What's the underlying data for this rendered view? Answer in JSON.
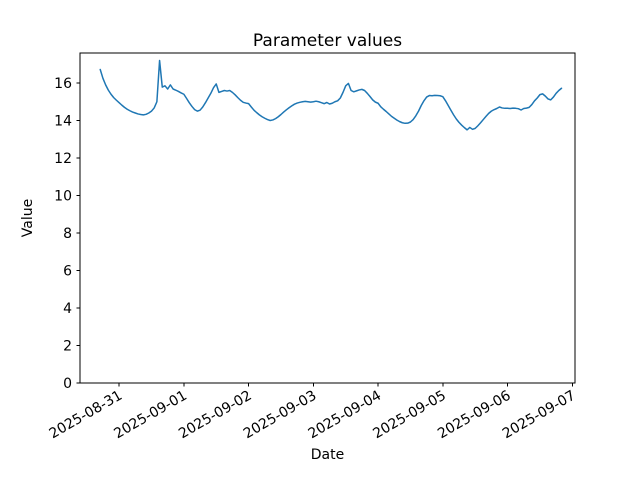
{
  "figure": {
    "title": "Parameter values"
  },
  "axes": {
    "xlabel": "Date",
    "ylabel": "Value"
  },
  "chart_data": {
    "type": "line",
    "title": "Parameter values",
    "xlabel": "Date",
    "ylabel": "Value",
    "grid": false,
    "legend": null,
    "background": "#ffffff",
    "spine_color": "#000000",
    "ylim": [
      0,
      17.6
    ],
    "xlim_hours": [
      9.5,
      193
    ],
    "hours_origin": "2025-08-30 00:00",
    "y_ticks": [
      0,
      2,
      4,
      6,
      8,
      10,
      12,
      14,
      16
    ],
    "x_ticks": [
      {
        "label": "2025-08-31",
        "hours": 24
      },
      {
        "label": "2025-09-01",
        "hours": 48
      },
      {
        "label": "2025-09-02",
        "hours": 72
      },
      {
        "label": "2025-09-03",
        "hours": 96
      },
      {
        "label": "2025-09-04",
        "hours": 120
      },
      {
        "label": "2025-09-05",
        "hours": 144
      },
      {
        "label": "2025-09-06",
        "hours": 168
      },
      {
        "label": "2025-09-07",
        "hours": 192
      }
    ],
    "series": [
      {
        "name": "Parameter values",
        "color": "#1f77b4",
        "line_width": 1.5,
        "start_time": "2025-08-30 17:00",
        "start_hours": 17,
        "step_hours": 1,
        "values": [
          16.72,
          16.25,
          15.9,
          15.62,
          15.4,
          15.22,
          15.08,
          14.95,
          14.82,
          14.7,
          14.6,
          14.52,
          14.45,
          14.4,
          14.35,
          14.32,
          14.3,
          14.33,
          14.4,
          14.5,
          14.67,
          15.0,
          17.2,
          15.78,
          15.85,
          15.68,
          15.9,
          15.68,
          15.62,
          15.55,
          15.47,
          15.4,
          15.18,
          14.95,
          14.75,
          14.58,
          14.5,
          14.55,
          14.72,
          14.95,
          15.2,
          15.45,
          15.75,
          15.95,
          15.5,
          15.55,
          15.6,
          15.57,
          15.6,
          15.5,
          15.37,
          15.22,
          15.08,
          14.97,
          14.93,
          14.9,
          14.72,
          14.55,
          14.42,
          14.3,
          14.2,
          14.12,
          14.05,
          14.0,
          14.03,
          14.1,
          14.2,
          14.32,
          14.45,
          14.57,
          14.68,
          14.78,
          14.87,
          14.93,
          14.97,
          15.0,
          15.02,
          15.0,
          14.98,
          15.0,
          15.03,
          15.0,
          14.95,
          14.9,
          14.96,
          14.88,
          14.92,
          15.0,
          15.05,
          15.2,
          15.5,
          15.85,
          15.98,
          15.6,
          15.53,
          15.58,
          15.63,
          15.66,
          15.6,
          15.45,
          15.28,
          15.1,
          14.98,
          14.92,
          14.73,
          14.6,
          14.48,
          14.35,
          14.22,
          14.12,
          14.02,
          13.94,
          13.88,
          13.85,
          13.86,
          13.92,
          14.05,
          14.25,
          14.5,
          14.8,
          15.05,
          15.25,
          15.33,
          15.32,
          15.34,
          15.33,
          15.32,
          15.27,
          15.05,
          14.8,
          14.55,
          14.3,
          14.08,
          13.9,
          13.75,
          13.62,
          13.5,
          13.63,
          13.53,
          13.58,
          13.72,
          13.88,
          14.05,
          14.22,
          14.38,
          14.5,
          14.58,
          14.64,
          14.72,
          14.67,
          14.65,
          14.65,
          14.64,
          14.66,
          14.65,
          14.63,
          14.56,
          14.64,
          14.66,
          14.7,
          14.85,
          15.05,
          15.2,
          15.38,
          15.42,
          15.3,
          15.15,
          15.1,
          15.25,
          15.45,
          15.6,
          15.72
        ]
      }
    ]
  }
}
